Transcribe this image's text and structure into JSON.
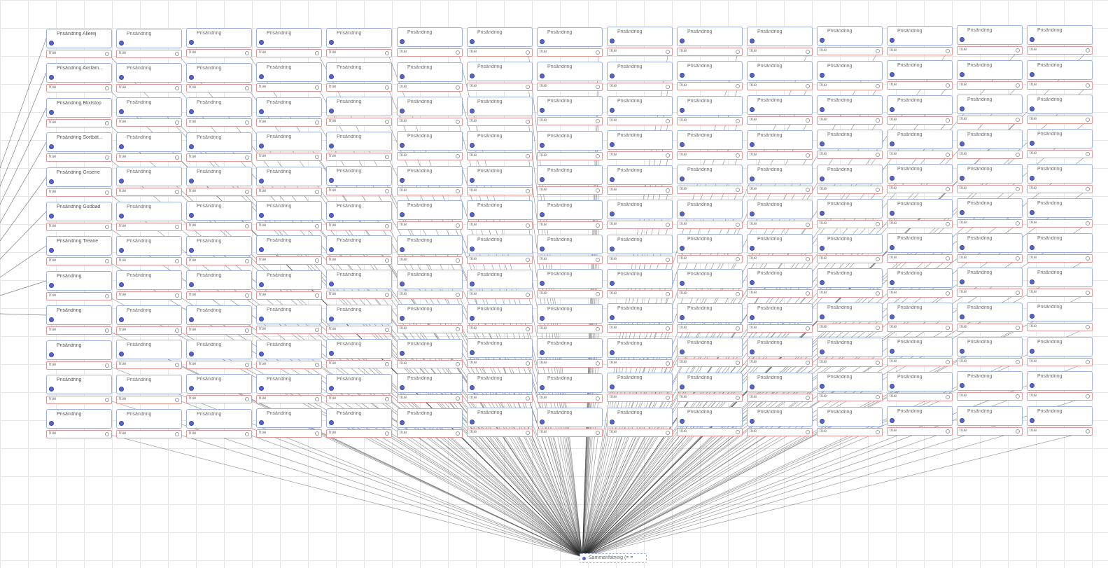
{
  "editor": {
    "node_label": "Prisändring",
    "value_label": "true",
    "first_column_labels": [
      "Prisändring Allerej",
      "Prisändring Avstäm...",
      "Prisändring Blixtstop",
      "Prisändring Sortbåt...",
      "Prisändring Grisene",
      "Prisändring Gudbad",
      "Prisändring Treane",
      "Prisändring",
      "Prisändring",
      "Prisändring",
      "Prisändring",
      "Prisändring"
    ],
    "target_label": "Sammenfatning (= ="
  },
  "grid": {
    "columns": 15,
    "rows": 12
  },
  "colors": {
    "node_border": "#9db0e6",
    "value_border": "#e39494",
    "port": "#5865c8",
    "wire": "#2b2b2b"
  }
}
